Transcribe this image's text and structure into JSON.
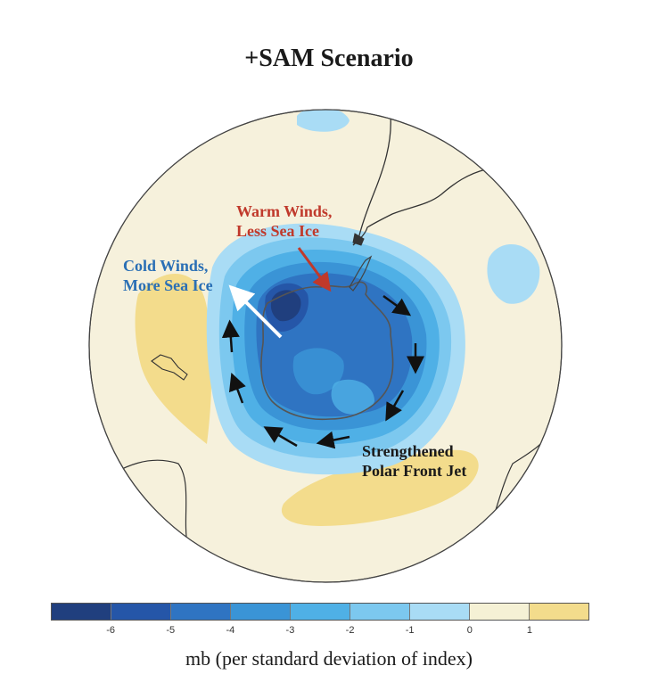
{
  "title": "+SAM Scenario",
  "labels": {
    "cold_line1": "Cold Winds,",
    "cold_line2": "More Sea Ice",
    "warm_line1": "Warm Winds,",
    "warm_line2": "Less Sea Ice",
    "jet_line1": "Strengthened",
    "jet_line2": "Polar Front Jet"
  },
  "colorbar": {
    "colors": [
      "#203f7e",
      "#2556a8",
      "#2f74c2",
      "#3a94d6",
      "#4fb0e6",
      "#7cc8ef",
      "#a9dcf5",
      "#f5f1d5",
      "#f3dc8c"
    ],
    "ticks": [
      "-6",
      "-5",
      "-4",
      "-3",
      "-2",
      "-1",
      "0",
      "1"
    ]
  },
  "unit_label": "mb (per standard deviation of index)",
  "colors": {
    "label_cold": "#2a6fb5",
    "label_warm": "#c0392b",
    "background_map": "#f6f1dc"
  }
}
